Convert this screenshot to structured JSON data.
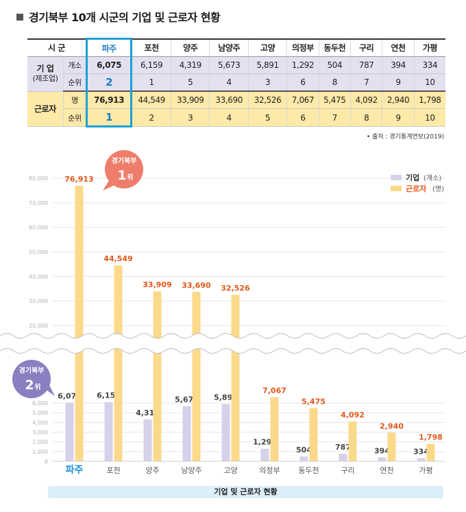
{
  "title": "경기북부 10개 시군의 기업 및 근로자 현황",
  "table": {
    "header_label": "시 군",
    "cities": [
      "파주",
      "포천",
      "양주",
      "남양주",
      "고양",
      "의정부",
      "동두천",
      "구리",
      "연천",
      "가평"
    ],
    "enterprise": {
      "label_line1": "기 업",
      "label_line2": "(제조업)",
      "count_label": "개소",
      "rank_label": "순위",
      "counts": [
        "6,075",
        "6,159",
        "4,319",
        "5,673",
        "5,891",
        "1,292",
        "504",
        "787",
        "394",
        "334"
      ],
      "ranks": [
        "2",
        "1",
        "5",
        "4",
        "3",
        "6",
        "8",
        "7",
        "9",
        "10"
      ]
    },
    "workers": {
      "label": "근로자",
      "count_label": "명",
      "rank_label": "순위",
      "counts": [
        "76,913",
        "44,549",
        "33,909",
        "33,690",
        "32,526",
        "7,067",
        "5,475",
        "4,092",
        "2,940",
        "1,798"
      ],
      "ranks": [
        "1",
        "2",
        "3",
        "4",
        "5",
        "6",
        "7",
        "8",
        "9",
        "10"
      ]
    }
  },
  "source": "• 출처 : 경기통계연보(2019)",
  "chart_data": {
    "type": "bar",
    "categories": [
      "파주",
      "포천",
      "양주",
      "남양주",
      "고양",
      "의정부",
      "동두천",
      "구리",
      "연천",
      "가평"
    ],
    "series": [
      {
        "name": "기업",
        "unit": "(개소)",
        "color": "#d6d1ea",
        "values": [
          6075,
          6159,
          4319,
          5673,
          5891,
          1292,
          504,
          787,
          394,
          334
        ],
        "labels": [
          "6,075",
          "6,159",
          "4,319",
          "5,673",
          "5,891",
          "1,292",
          "504",
          "787",
          "394",
          "334"
        ],
        "label_color": "#444444"
      },
      {
        "name": "근로자",
        "unit": "(명)",
        "color": "#fbd98a",
        "values": [
          76913,
          44549,
          33909,
          33690,
          32526,
          7067,
          5475,
          4092,
          2940,
          1798
        ],
        "labels": [
          "76,913",
          "44,549",
          "33,909",
          "33,690",
          "32,526",
          "7,067",
          "5,475",
          "4,092",
          "2,940",
          "1,798"
        ],
        "label_color": "#e2571b"
      }
    ],
    "y_lower_ticks": [
      "0",
      "1,000",
      "2,000",
      "3,000",
      "4,000",
      "5,000",
      "6,000"
    ],
    "y_upper_ticks": [
      "20,000",
      "30,000",
      "40,000",
      "50,000",
      "60,000",
      "70,000",
      "80,000"
    ],
    "axis_break": true,
    "legend_position": "top-right",
    "highlight_category": "파주",
    "highlight_color": "#1a8fd6",
    "callouts": [
      {
        "line1": "경기북부",
        "rank": "1",
        "suffix": "위",
        "color": "#ef7d6b",
        "target": "근로자"
      },
      {
        "line1": "경기북부",
        "rank": "2",
        "suffix": "위",
        "color": "#8a7fc0",
        "target": "기업"
      }
    ],
    "footer": "기업 및 근로자 현황"
  }
}
